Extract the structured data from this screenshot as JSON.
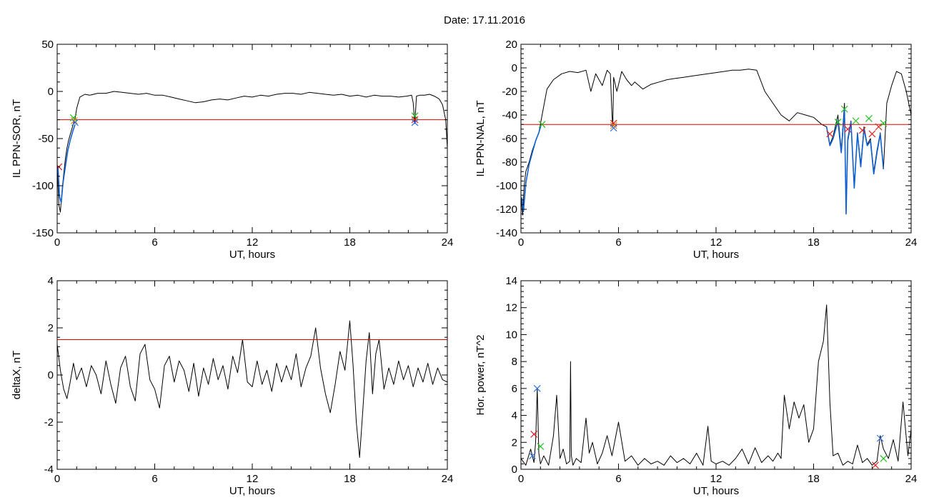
{
  "date_title": "Date:  17.11.2016",
  "colors": {
    "trace": "#000000",
    "threshold": "#e00000",
    "fit": "#1060d0",
    "marker_green": "#20c020",
    "marker_red": "#e02020",
    "marker_blue": "#3070e0",
    "marker_orange": "#e08a00"
  },
  "chart_data": [
    {
      "type": "line",
      "title": "",
      "xlabel": "UT, hours",
      "ylabel": "IL PPN-SOR, nT",
      "xlim": [
        0,
        24
      ],
      "ylim": [
        -150,
        50
      ],
      "xticks": [
        0,
        6,
        12,
        18,
        24
      ],
      "yticks": [
        -150,
        -100,
        -50,
        0,
        50
      ],
      "grid": false,
      "series": [
        {
          "role": "trace",
          "x": [
            0,
            0.1,
            0.2,
            0.3,
            0.4,
            0.5,
            0.6,
            0.7,
            0.8,
            0.9,
            1.0,
            1.1,
            1.2,
            1.4,
            1.7,
            2.0,
            2.5,
            3.0,
            3.5,
            4.0,
            4.5,
            5.0,
            5.5,
            6.0,
            6.5,
            7.0,
            7.5,
            8.0,
            8.5,
            9.0,
            9.5,
            10.0,
            10.5,
            11.0,
            11.5,
            12.0,
            12.5,
            13.0,
            13.5,
            14.0,
            14.5,
            15.0,
            15.5,
            16.0,
            16.5,
            17.0,
            17.5,
            18.0,
            18.5,
            19.0,
            19.5,
            20.0,
            20.5,
            21.0,
            21.5,
            21.8,
            21.9,
            22.0,
            22.1,
            22.3,
            22.6,
            22.9,
            23.2,
            23.5,
            23.7,
            23.9,
            24.0
          ],
          "y": [
            -80,
            -120,
            -128,
            -105,
            -88,
            -72,
            -60,
            -52,
            -46,
            -40,
            -34,
            -29,
            -18,
            -6,
            -3,
            -4,
            -2,
            -2,
            0,
            -1,
            -2,
            -3,
            -2,
            -4,
            -4,
            -6,
            -8,
            -10,
            -12,
            -11,
            -9,
            -8,
            -9,
            -7,
            -5,
            -6,
            -4,
            -5,
            -3,
            -2,
            -2,
            -3,
            -1,
            -2,
            -3,
            -4,
            -3,
            -5,
            -4,
            -6,
            -4,
            -5,
            -5,
            -6,
            -5,
            -4,
            -12,
            -34,
            -5,
            -4,
            -4,
            -3,
            -5,
            -8,
            -14,
            -30,
            -60
          ]
        },
        {
          "role": "fit",
          "x": [
            0.05,
            0.15,
            0.25,
            0.35,
            0.5,
            0.65,
            0.8,
            0.95,
            1.1
          ],
          "y": [
            -80,
            -112,
            -118,
            -98,
            -80,
            -63,
            -52,
            -43,
            -35
          ]
        },
        {
          "role": "threshold",
          "x": [
            0,
            24
          ],
          "y": [
            -30,
            -30
          ]
        }
      ],
      "markers": [
        {
          "x": 1.0,
          "y": -28,
          "color": "green"
        },
        {
          "x": 1.05,
          "y": -31,
          "color": "orange"
        },
        {
          "x": 1.1,
          "y": -33,
          "color": "blue"
        },
        {
          "x": 0.1,
          "y": -80,
          "color": "red"
        },
        {
          "x": 22.0,
          "y": -26,
          "color": "green"
        },
        {
          "x": 22.0,
          "y": -30,
          "color": "red"
        },
        {
          "x": 22.0,
          "y": -33,
          "color": "blue"
        }
      ]
    },
    {
      "type": "line",
      "title": "",
      "xlabel": "UT, hours",
      "ylabel": "IL PPN-NAL, nT",
      "xlim": [
        0,
        24
      ],
      "ylim": [
        -140,
        20
      ],
      "xticks": [
        0,
        6,
        12,
        18,
        24
      ],
      "yticks": [
        -140,
        -120,
        -100,
        -80,
        -60,
        -40,
        -20,
        0,
        20
      ],
      "grid": false,
      "series": [
        {
          "role": "trace",
          "x": [
            0,
            0.1,
            0.2,
            0.3,
            0.5,
            0.7,
            0.9,
            1.1,
            1.3,
            1.6,
            2.0,
            2.5,
            3.0,
            3.5,
            4.0,
            4.3,
            4.6,
            5.0,
            5.3,
            5.5,
            5.6,
            5.65,
            5.7,
            5.9,
            6.2,
            6.5,
            6.8,
            7.0,
            7.5,
            8.0,
            8.5,
            9.0,
            9.5,
            10.0,
            10.5,
            11.0,
            11.5,
            12.0,
            12.5,
            13.0,
            13.5,
            14.0,
            14.5,
            15.0,
            15.5,
            16.0,
            16.5,
            17.0,
            17.5,
            18.0,
            18.5,
            18.8,
            19.0,
            19.2,
            19.5,
            19.7,
            19.9,
            20.0,
            20.1,
            20.3,
            20.5,
            20.7,
            20.9,
            21.1,
            21.3,
            21.5,
            21.7,
            21.9,
            22.1,
            22.3,
            22.5,
            22.8,
            23.1,
            23.4,
            23.7,
            24.0
          ],
          "y": [
            -110,
            -125,
            -100,
            -88,
            -80,
            -70,
            -62,
            -55,
            -40,
            -18,
            -10,
            -5,
            -3,
            -4,
            -2,
            -20,
            -5,
            -15,
            -2,
            -5,
            -40,
            -50,
            -8,
            -20,
            -3,
            -10,
            -15,
            -12,
            -18,
            -14,
            -12,
            -10,
            -9,
            -8,
            -7,
            -6,
            -5,
            -4,
            -3,
            -2,
            -2,
            -1,
            -2,
            -20,
            -30,
            -40,
            -45,
            -38,
            -40,
            -42,
            -48,
            -50,
            -65,
            -58,
            -40,
            -70,
            -30,
            -122,
            -60,
            -45,
            -100,
            -55,
            -82,
            -50,
            -65,
            -60,
            -88,
            -70,
            -55,
            -85,
            -30,
            -15,
            -3,
            -5,
            -20,
            -40
          ]
        },
        {
          "role": "fit",
          "x": [
            0.05,
            0.15,
            0.3,
            0.5,
            0.7,
            0.9,
            1.1,
            1.25
          ],
          "y": [
            -110,
            -122,
            -98,
            -82,
            -72,
            -62,
            -55,
            -48
          ]
        },
        {
          "role": "fit",
          "x": [
            18.8,
            19.0,
            19.2,
            19.5,
            19.7,
            19.9,
            20.0,
            20.1,
            20.3,
            20.5,
            20.7,
            20.9,
            21.1,
            21.3,
            21.5,
            21.7,
            21.9,
            22.1,
            22.3
          ],
          "y": [
            -50,
            -66,
            -60,
            -45,
            -72,
            -35,
            -124,
            -62,
            -46,
            -102,
            -56,
            -84,
            -52,
            -66,
            -62,
            -90,
            -72,
            -56,
            -86
          ]
        },
        {
          "role": "threshold",
          "x": [
            0,
            24
          ],
          "y": [
            -48,
            -48
          ]
        }
      ],
      "markers": [
        {
          "x": 1.3,
          "y": -48,
          "color": "green"
        },
        {
          "x": 5.7,
          "y": -47,
          "color": "red"
        },
        {
          "x": 5.7,
          "y": -49,
          "color": "orange"
        },
        {
          "x": 5.7,
          "y": -51,
          "color": "blue"
        },
        {
          "x": 19.0,
          "y": -56,
          "color": "red"
        },
        {
          "x": 19.5,
          "y": -46,
          "color": "green"
        },
        {
          "x": 19.9,
          "y": -35,
          "color": "green"
        },
        {
          "x": 20.1,
          "y": -52,
          "color": "red"
        },
        {
          "x": 20.6,
          "y": -45,
          "color": "green"
        },
        {
          "x": 21.0,
          "y": -53,
          "color": "red"
        },
        {
          "x": 21.4,
          "y": -43,
          "color": "green"
        },
        {
          "x": 21.6,
          "y": -56,
          "color": "red"
        },
        {
          "x": 22.0,
          "y": -50,
          "color": "red"
        },
        {
          "x": 22.3,
          "y": -47,
          "color": "green"
        }
      ]
    },
    {
      "type": "line",
      "title": "",
      "xlabel": "UT, hours",
      "ylabel": "deltaX, nT",
      "xlim": [
        0,
        24
      ],
      "ylim": [
        -4,
        4
      ],
      "xticks": [
        0,
        6,
        12,
        18,
        24
      ],
      "yticks": [
        -4,
        -2,
        0,
        2,
        4
      ],
      "grid": false,
      "series": [
        {
          "role": "trace",
          "x": [
            0,
            0.2,
            0.4,
            0.6,
            0.8,
            1.0,
            1.2,
            1.5,
            1.8,
            2.1,
            2.4,
            2.7,
            3.0,
            3.3,
            3.6,
            3.9,
            4.2,
            4.5,
            4.8,
            5.1,
            5.4,
            5.7,
            6.0,
            6.3,
            6.6,
            6.9,
            7.2,
            7.5,
            7.8,
            8.1,
            8.4,
            8.7,
            9.0,
            9.3,
            9.6,
            9.9,
            10.2,
            10.5,
            10.8,
            11.1,
            11.4,
            11.7,
            12.0,
            12.3,
            12.6,
            12.9,
            13.2,
            13.5,
            13.8,
            14.1,
            14.4,
            14.7,
            15.0,
            15.3,
            15.6,
            15.9,
            16.2,
            16.5,
            16.8,
            17.1,
            17.4,
            17.7,
            18.0,
            18.2,
            18.4,
            18.6,
            18.8,
            19.0,
            19.2,
            19.4,
            19.6,
            19.8,
            20.1,
            20.4,
            20.7,
            21.0,
            21.3,
            21.6,
            21.9,
            22.2,
            22.5,
            22.8,
            23.1,
            23.4,
            23.7,
            24.0
          ],
          "y": [
            1.3,
            0.2,
            -0.6,
            -1.0,
            -0.3,
            0.5,
            -0.2,
            0.3,
            -0.5,
            0.4,
            0.0,
            -0.8,
            0.6,
            -0.4,
            -1.2,
            0.3,
            0.8,
            -0.5,
            -1.1,
            0.9,
            1.3,
            -0.2,
            -0.6,
            -1.4,
            0.4,
            0.8,
            -0.3,
            0.6,
            0.2,
            -0.7,
            0.5,
            -0.9,
            0.3,
            -0.4,
            0.7,
            -0.2,
            0.4,
            -0.6,
            0.8,
            0.1,
            1.5,
            -0.3,
            -0.5,
            0.6,
            -0.4,
            0.2,
            -0.7,
            0.5,
            -0.3,
            0.4,
            -0.2,
            0.9,
            -0.5,
            0.3,
            0.8,
            2.0,
            0.3,
            -0.8,
            -1.6,
            -0.4,
            1.0,
            0.2,
            2.3,
            0.4,
            -2.0,
            -3.5,
            -1.5,
            0.6,
            1.8,
            -0.8,
            0.9,
            1.5,
            -0.6,
            0.3,
            -0.4,
            0.6,
            -0.2,
            0.4,
            -0.5,
            0.3,
            -0.3,
            0.5,
            -0.4,
            0.3,
            -0.2,
            -0.3
          ]
        },
        {
          "role": "threshold",
          "x": [
            0,
            24
          ],
          "y": [
            1.5,
            1.5
          ]
        }
      ],
      "markers": []
    },
    {
      "type": "line",
      "title": "",
      "xlabel": "UT, hours",
      "ylabel": "Hor. power, nT^2",
      "xlim": [
        0,
        24
      ],
      "ylim": [
        0,
        14
      ],
      "xticks": [
        0,
        6,
        12,
        18,
        24
      ],
      "yticks": [
        0,
        2,
        4,
        6,
        8,
        10,
        12,
        14
      ],
      "grid": false,
      "series": [
        {
          "role": "trace",
          "x": [
            0,
            0.3,
            0.6,
            0.8,
            0.9,
            1.0,
            1.1,
            1.2,
            1.4,
            1.7,
            2.0,
            2.2,
            2.4,
            2.6,
            2.8,
            3.0,
            3.05,
            3.1,
            3.2,
            3.4,
            3.7,
            4.0,
            4.2,
            4.4,
            4.7,
            5.0,
            5.3,
            5.6,
            6.0,
            6.4,
            6.8,
            7.2,
            7.6,
            8.0,
            8.4,
            8.8,
            9.2,
            9.6,
            10.0,
            10.4,
            10.8,
            11.2,
            11.5,
            11.7,
            12.0,
            12.4,
            12.8,
            13.2,
            13.6,
            14.0,
            14.4,
            14.8,
            15.2,
            15.5,
            15.8,
            16.0,
            16.2,
            16.5,
            16.8,
            17.1,
            17.4,
            17.7,
            18.0,
            18.3,
            18.6,
            18.8,
            19.0,
            19.2,
            19.5,
            19.8,
            20.1,
            20.4,
            20.7,
            21.0,
            21.3,
            21.6,
            21.9,
            22.1,
            22.3,
            22.6,
            22.9,
            23.2,
            23.5,
            23.8,
            24.0
          ],
          "y": [
            0.8,
            0.3,
            1.5,
            0.5,
            2.0,
            6.0,
            1.2,
            0.4,
            1.0,
            0.3,
            2.5,
            5.5,
            0.8,
            1.5,
            0.4,
            0.6,
            8.0,
            1.0,
            0.3,
            0.8,
            0.5,
            3.8,
            1.2,
            2.0,
            0.4,
            1.2,
            2.5,
            1.0,
            3.5,
            0.6,
            1.0,
            0.3,
            0.8,
            0.4,
            0.6,
            0.3,
            1.0,
            0.5,
            0.8,
            0.4,
            1.2,
            0.3,
            3.2,
            0.6,
            0.4,
            0.6,
            0.3,
            0.8,
            1.5,
            0.4,
            1.6,
            0.5,
            1.0,
            0.6,
            1.2,
            0.8,
            5.5,
            3.0,
            5.0,
            3.8,
            4.8,
            2.0,
            3.0,
            8.0,
            9.5,
            12.2,
            5.0,
            1.0,
            1.2,
            0.3,
            0.6,
            0.4,
            1.8,
            0.5,
            0.8,
            0.3,
            0.6,
            2.5,
            1.5,
            0.8,
            2.2,
            0.6,
            5.0,
            1.0,
            3.0
          ]
        }
      ],
      "markers": [
        {
          "x": 1.0,
          "y": 6.0,
          "color": "blue"
        },
        {
          "x": 0.8,
          "y": 2.6,
          "color": "red"
        },
        {
          "x": 1.2,
          "y": 1.7,
          "color": "green"
        },
        {
          "x": 0.7,
          "y": 1.0,
          "color": "blue"
        },
        {
          "x": 22.1,
          "y": 2.3,
          "color": "blue"
        },
        {
          "x": 22.3,
          "y": 0.8,
          "color": "green"
        },
        {
          "x": 21.8,
          "y": 0.3,
          "color": "red"
        }
      ]
    }
  ]
}
